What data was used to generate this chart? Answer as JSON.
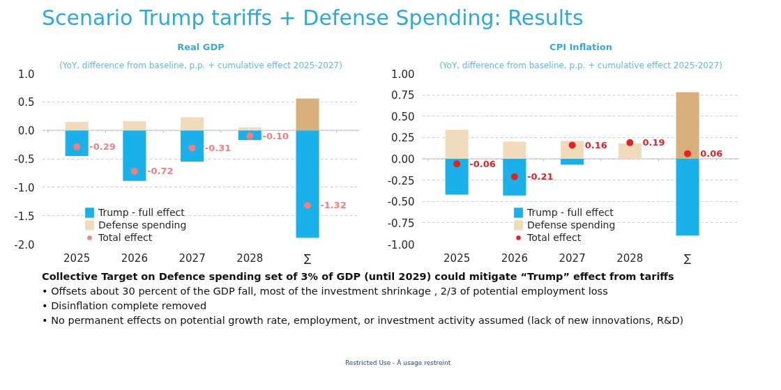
{
  "chart_data": [
    {
      "type": "bar",
      "title": "Real GDP",
      "subtitle": "(YoY, difference from baseline, p.p. + cumulative effect 2025-2027)",
      "stacked": true,
      "grid": "y",
      "legend": "bottom left",
      "categories": [
        "2025",
        "2026",
        "2027",
        "2028",
        "∑"
      ],
      "series": [
        {
          "name": "Trump - full effect",
          "type": "bar",
          "color": "#1ab1ea",
          "values": [
            -0.45,
            -0.89,
            -0.55,
            -0.17,
            -1.89
          ]
        },
        {
          "name": "Defense spending",
          "type": "bar",
          "color": "#f0dcbc",
          "colors": [
            "#f0dcbc",
            "#f0dcbc",
            "#f0dcbc",
            "#f0dcbc",
            "#d8b07c"
          ],
          "values": [
            0.15,
            0.16,
            0.23,
            0.05,
            0.56
          ]
        },
        {
          "name": "Total effect",
          "type": "scatter",
          "marker": "circle",
          "color": "#f08080",
          "values": [
            -0.29,
            -0.72,
            -0.31,
            -0.1,
            -1.32
          ],
          "value_labels": [
            "-0.29",
            "-0.72",
            "-0.31",
            "-0.10",
            "-1.32"
          ]
        }
      ],
      "ylim": [
        -2.0,
        1.0
      ],
      "yticks": [
        {
          "value": -2.0,
          "label": "-2.0"
        },
        {
          "value": -1.5,
          "label": "-1.5"
        },
        {
          "value": -1.0,
          "label": "-1.0"
        },
        {
          "value": -0.5,
          "label": "-0.5"
        },
        {
          "value": 0,
          "label": "0.0"
        },
        {
          "value": 0.5,
          "label": "0.5"
        },
        {
          "value": 1.0,
          "label": "1.0"
        }
      ],
      "annotations": [
        "Scenario Trump tariffs +  Defense Spending: Results",
        "Collective Target on Defence spending set of 3% of GDP (until 2029) could mitigate “Trump” effect from tariffs",
        "• Offsets about 30 percent of the GDP fall, most of the investment shrinkage , 2/3 of potential employment loss",
        "• Disinflation complete removed",
        "• No permanent effects on potential growth rate, employment, or investment activity assumed (lack of new innovations, R&D)"
      ]
    },
    {
      "type": "bar",
      "title": "CPI Inflation",
      "subtitle": "(YoY, difference from baseline, p.p. + cumulative effect 2025-2027)",
      "stacked": true,
      "grid": "y",
      "legend": "bottom",
      "categories": [
        "2025",
        "2026",
        "2027",
        "2028",
        "∑"
      ],
      "series": [
        {
          "name": "Trump - full effect",
          "type": "bar",
          "color": "#1ab1ea",
          "values": [
            -0.42,
            -0.43,
            -0.07,
            0,
            -0.9
          ]
        },
        {
          "name": "Defense spending",
          "type": "bar",
          "color": "#f0dcbc",
          "colors": [
            "#f0dcbc",
            "#f0dcbc",
            "#f0dcbc",
            "#f0dcbc",
            "#d8b07c"
          ],
          "values": [
            0.34,
            0.2,
            0.21,
            0.18,
            0.78
          ]
        },
        {
          "name": "Total effect",
          "type": "scatter",
          "marker": "circle",
          "color": "#e52222",
          "values": [
            -0.06,
            -0.21,
            0.16,
            0.19,
            0.06
          ],
          "value_labels": [
            "-0.06",
            "-0.21",
            "0.16",
            "0.19",
            "0.06"
          ]
        }
      ],
      "ylim": [
        -1.0,
        1.0
      ],
      "yticks": [
        {
          "value": -1.0,
          "label": "-1.00"
        },
        {
          "value": -0.75,
          "label": "-0.75"
        },
        {
          "value": -0.5,
          "label": "-0.50"
        },
        {
          "value": -0.25,
          "label": "-0.25"
        },
        {
          "value": 0,
          "label": "0.00"
        },
        {
          "value": 0.25,
          "label": "0.25"
        },
        {
          "value": 0.5,
          "label": "0.50"
        },
        {
          "value": 0.75,
          "label": "0.75"
        },
        {
          "value": 1.0,
          "label": "1.00"
        }
      ],
      "annotations": [
        "Restricted Use - À usage restreint"
      ]
    }
  ]
}
